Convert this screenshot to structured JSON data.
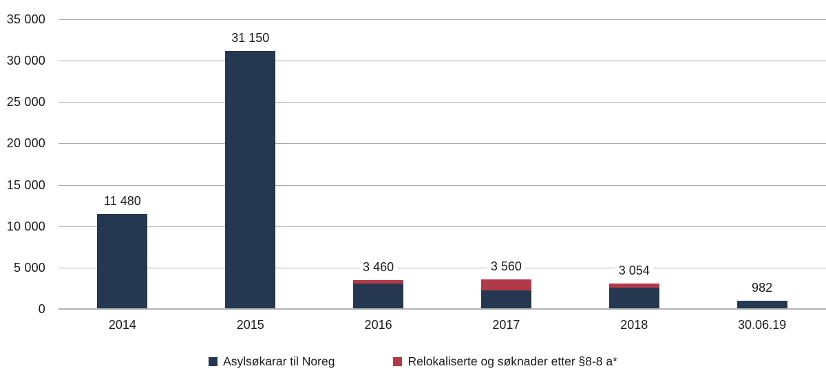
{
  "chart_data": {
    "type": "bar",
    "stacked": true,
    "title": "",
    "xlabel": "",
    "ylabel": "",
    "categories": [
      "2014",
      "2015",
      "2016",
      "2017",
      "2018",
      "30.06.19"
    ],
    "series": [
      {
        "name": "Asylsøkarar til Noreg",
        "color": "#253850",
        "values": [
          11480,
          31150,
          3060,
          2260,
          2604,
          982
        ]
      },
      {
        "name": "Relokaliserte og søknader etter §8-8 a*",
        "color": "#b13a49",
        "values": [
          0,
          0,
          400,
          1300,
          450,
          0
        ]
      }
    ],
    "totals": [
      11480,
      31150,
      3460,
      3560,
      3054,
      982
    ],
    "bar_labels": [
      "11 480",
      "31 150",
      "3 460",
      "3 560",
      "3 054",
      "982"
    ],
    "ylim": [
      0,
      35000
    ],
    "ytick_step": 5000,
    "ytick_labels": [
      "0",
      "5 000",
      "10 000",
      "15 000",
      "20 000",
      "25 000",
      "30 000",
      "35 000"
    ],
    "grid": "horizontal-only",
    "gridline_color": "#aaaaaa",
    "text_color": "#1a1a1a",
    "background_color": "#ffffff",
    "legend_position": "bottom-center"
  },
  "legend": {
    "items": [
      {
        "label": "Asylsøkarar til Noreg",
        "color": "#253850"
      },
      {
        "label": "Relokaliserte og søknader etter §8-8 a*",
        "color": "#b13a49"
      }
    ]
  }
}
